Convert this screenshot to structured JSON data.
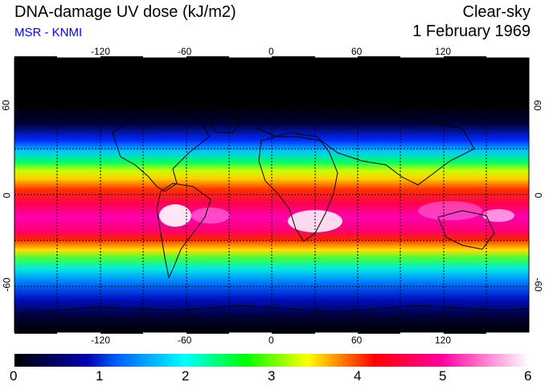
{
  "header": {
    "title": "DNA-damage UV dose (kJ/m2)",
    "source": "MSR - KNMI",
    "sky_condition": "Clear-sky",
    "date": "1 February 1969"
  },
  "map": {
    "projection": "equirectangular",
    "lon_ticks": [
      "-120",
      "-60",
      "0",
      "60",
      "120"
    ],
    "lat_ticks": [
      "60",
      "0",
      "-60"
    ],
    "grid_style": "dotted"
  },
  "colorbar": {
    "labels": [
      "0",
      "1",
      "2",
      "3",
      "4",
      "5",
      "6"
    ],
    "stops": [
      "#000000",
      "#0000cc",
      "#00ffff",
      "#00ff00",
      "#ffff00",
      "#ff0000",
      "#ff00aa",
      "#ffffff"
    ]
  },
  "colors": {
    "title": "#000000",
    "source": "#0000ff",
    "ocean_polar": "#000000"
  }
}
